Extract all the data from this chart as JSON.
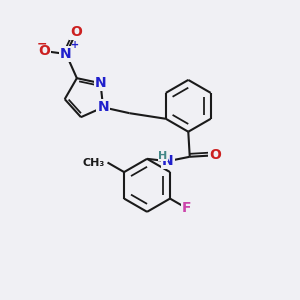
{
  "bg_color": "#f0f0f4",
  "bond_color": "#1a1a1a",
  "bond_width": 1.5,
  "atom_colors": {
    "N": "#2020cc",
    "O": "#cc2020",
    "F": "#cc44aa",
    "H": "#448888",
    "C": "#1a1a1a"
  },
  "font_size_atoms": 10,
  "font_size_small": 8,
  "scale": 1.3
}
